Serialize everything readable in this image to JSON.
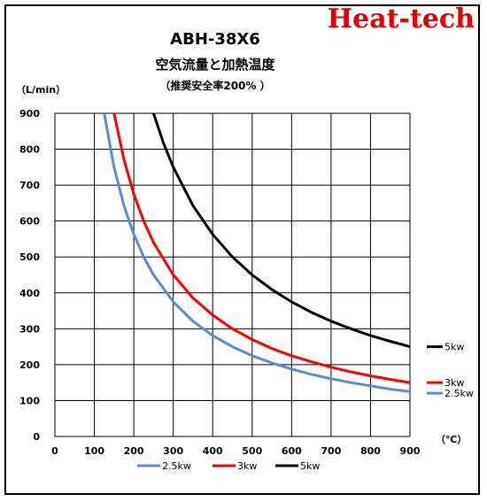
{
  "brand": "Heat-tech",
  "chart_data": {
    "type": "line",
    "title": "ABH-38X6",
    "subtitle": "空気流量と加熱温度",
    "note": "（推奨安全率200% ）",
    "ylabel": "（L/min）",
    "xlabel": "（℃）",
    "xlim": [
      0,
      900
    ],
    "ylim": [
      0,
      900
    ],
    "x_ticks": [
      "0",
      "100",
      "200",
      "300",
      "400",
      "500",
      "600",
      "700",
      "800",
      "900"
    ],
    "y_ticks": [
      "0",
      "100",
      "200",
      "300",
      "400",
      "500",
      "600",
      "700",
      "800",
      "900"
    ],
    "grid": true,
    "legend_position": "bottom",
    "series": [
      {
        "name": "2.5kw",
        "color": "#5b8bd0",
        "end_label": "2.5kw",
        "x": [
          125,
          150,
          175,
          200,
          225,
          250,
          300,
          350,
          400,
          450,
          500,
          550,
          600,
          650,
          700,
          750,
          800,
          850,
          900
        ],
        "y": [
          900,
          750,
          643,
          563,
          500,
          450,
          375,
          321,
          281,
          250,
          225,
          205,
          188,
          173,
          161,
          150,
          141,
          132,
          125
        ]
      },
      {
        "name": "3kw",
        "color": "#ff0000",
        "end_label": "3kw",
        "x": [
          150,
          175,
          200,
          225,
          250,
          300,
          350,
          400,
          450,
          500,
          550,
          600,
          650,
          700,
          750,
          800,
          850,
          900
        ],
        "y": [
          900,
          771,
          675,
          600,
          540,
          450,
          386,
          338,
          300,
          270,
          245,
          225,
          208,
          193,
          180,
          169,
          159,
          150
        ]
      },
      {
        "name": "5kw",
        "color": "#000000",
        "end_label": "5kw",
        "x": [
          250,
          275,
          300,
          350,
          400,
          450,
          500,
          550,
          600,
          650,
          700,
          750,
          800,
          850,
          900
        ],
        "y": [
          900,
          818,
          750,
          643,
          563,
          500,
          450,
          409,
          375,
          346,
          321,
          300,
          281,
          265,
          250
        ]
      }
    ]
  }
}
